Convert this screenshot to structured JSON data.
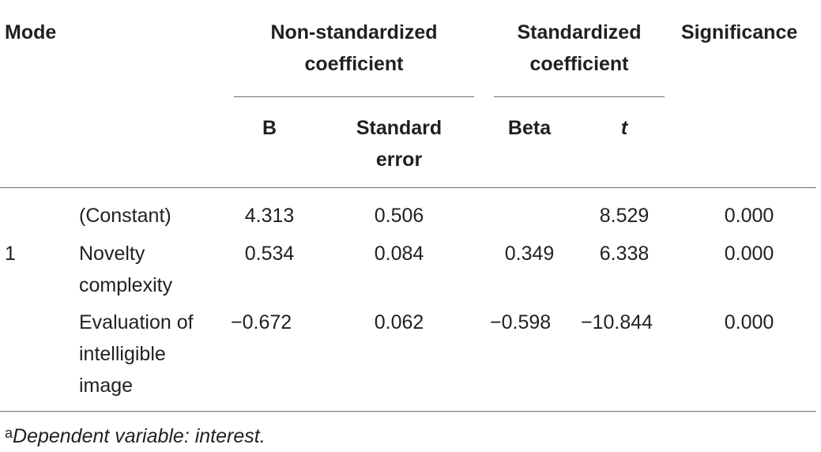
{
  "table": {
    "headers": {
      "mode": "Mode",
      "nonstd_line1": "Non-standardized",
      "nonstd_line2": "coefficient",
      "std_line1": "Standardized",
      "std_line2": "coefficient",
      "significance": "Significance",
      "b": "B",
      "se_line1": "Standard",
      "se_line2": "error",
      "beta": "Beta",
      "t": "t"
    },
    "model_label": "1",
    "rows": [
      {
        "label": [
          "(Constant)"
        ],
        "b": "4.313",
        "se": "0.506",
        "beta": "",
        "t": "8.529",
        "sig": "0.000"
      },
      {
        "label": [
          "Novelty",
          "complexity"
        ],
        "b": "0.534",
        "se": "0.084",
        "beta": "0.349",
        "t": "6.338",
        "sig": "0.000"
      },
      {
        "label": [
          "Evaluation of",
          "intelligible",
          "image"
        ],
        "b": "−0.672",
        "se": "0.062",
        "beta": "−0.598",
        "t": "−10.844",
        "sig": "0.000"
      }
    ],
    "footnote": {
      "marker": "a",
      "text": "Dependent variable: interest."
    }
  }
}
